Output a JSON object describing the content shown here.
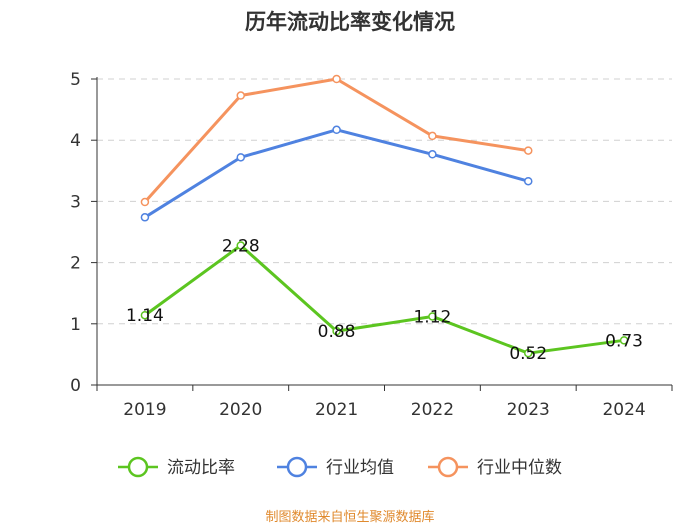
{
  "chart_data": {
    "type": "line",
    "title": "历年流动比率变化情况",
    "categories": [
      "2019",
      "2020",
      "2021",
      "2022",
      "2023",
      "2024"
    ],
    "ylim": [
      0,
      5
    ],
    "yticks": [
      0,
      1,
      2,
      3,
      4,
      5
    ],
    "grid": true,
    "legend_position": "bottom",
    "series": [
      {
        "name": "流动比率",
        "color": "#5cc520",
        "values": [
          1.14,
          2.28,
          0.88,
          1.12,
          0.52,
          0.73
        ],
        "labels": [
          "1.14",
          "2.28",
          "0.88",
          "1.12",
          "0.52",
          "0.73"
        ]
      },
      {
        "name": "行业均值",
        "color": "#4f82e0",
        "values": [
          2.74,
          3.72,
          4.17,
          3.77,
          3.33,
          null
        ]
      },
      {
        "name": "行业中位数",
        "color": "#f5935e",
        "values": [
          2.99,
          4.73,
          5.0,
          4.07,
          3.83,
          null
        ]
      }
    ],
    "source": "制图数据来自恒生聚源数据库"
  }
}
